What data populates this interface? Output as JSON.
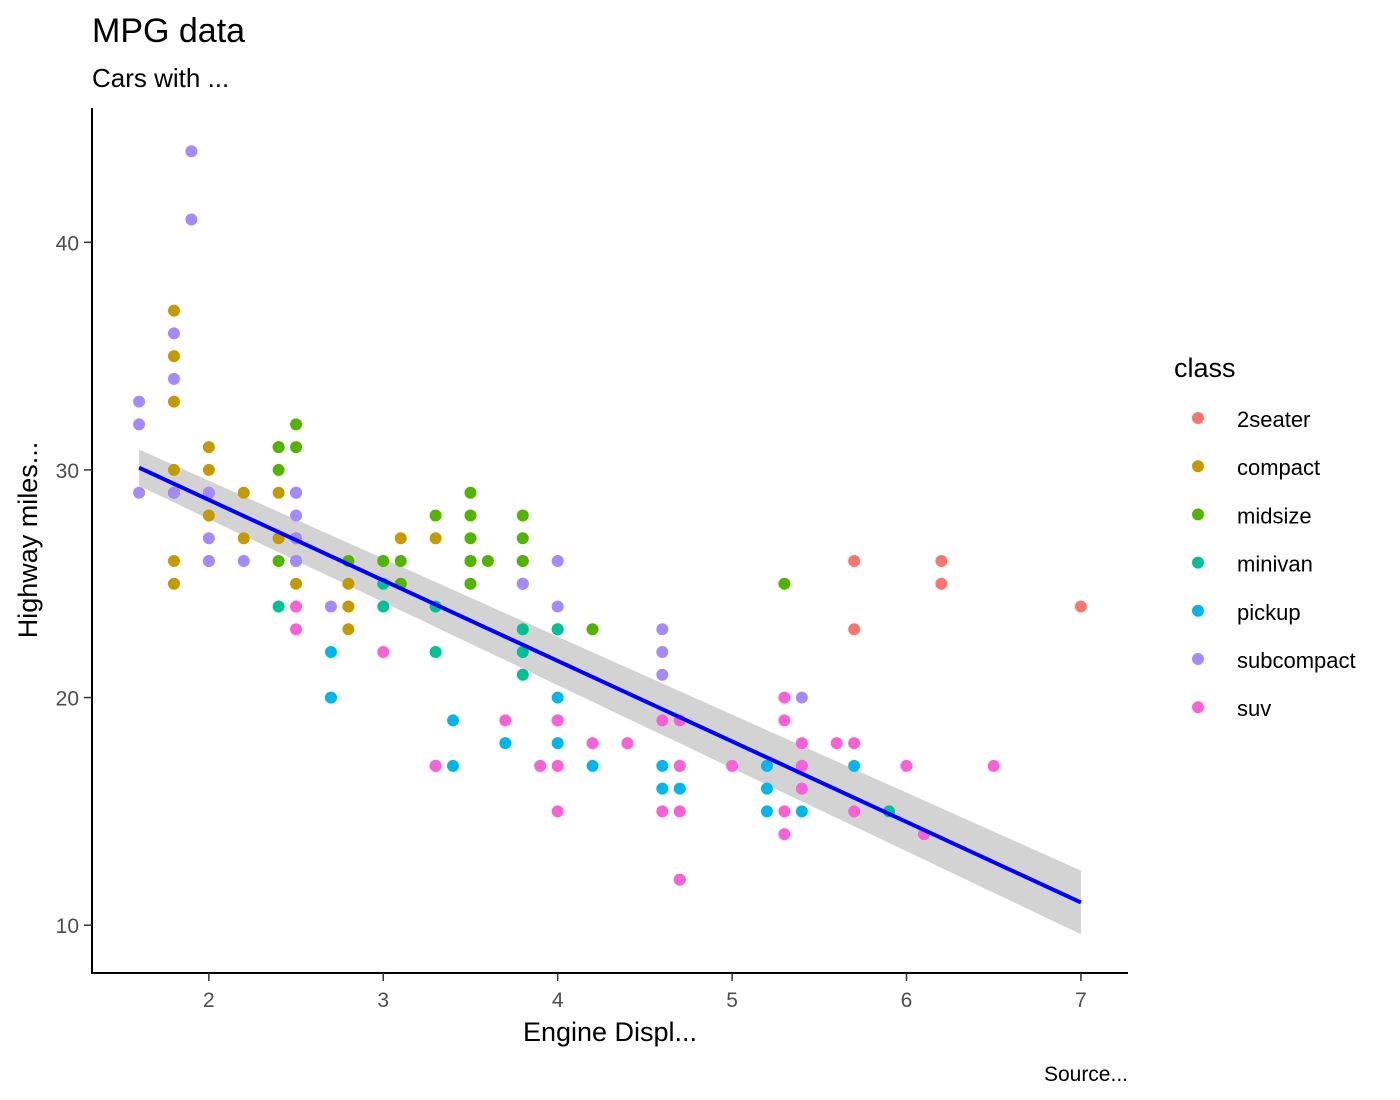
{
  "chart_data": {
    "type": "scatter",
    "title": "MPG data",
    "subtitle": "Cars with ...",
    "xlabel": "Engine Displ...",
    "ylabel": "Highway miles...",
    "caption": "Source...",
    "xlim": [
      1.33,
      7.27
    ],
    "ylim": [
      7.9,
      45.9
    ],
    "xticks": [
      2,
      3,
      4,
      5,
      6,
      7
    ],
    "yticks": [
      10,
      20,
      30,
      40
    ],
    "grid": false,
    "legend": {
      "title": "class",
      "position": "right",
      "entries": [
        {
          "name": "2seater",
          "color": "#F8766D"
        },
        {
          "name": "compact",
          "color": "#C49A00"
        },
        {
          "name": "midsize",
          "color": "#53B400"
        },
        {
          "name": "minivan",
          "color": "#00C094"
        },
        {
          "name": "pickup",
          "color": "#00B6EB"
        },
        {
          "name": "subcompact",
          "color": "#A58AFF"
        },
        {
          "name": "suv",
          "color": "#FB61D7"
        }
      ]
    },
    "trend_line": {
      "method": "linear",
      "color": "#0000FF",
      "band_color": "#D3D3D3",
      "x": [
        1.6,
        7.0
      ],
      "y": [
        30.1,
        11.0
      ],
      "ci_upper": [
        30.9,
        12.4
      ],
      "ci_lower": [
        29.3,
        9.6
      ]
    },
    "series": [
      {
        "name": "2seater",
        "color": "#F8766D",
        "x": [
          5.7,
          5.7,
          6.2,
          6.2,
          7.0
        ],
        "y": [
          26,
          23,
          26,
          25,
          24
        ]
      },
      {
        "name": "compact",
        "color": "#C49A00",
        "x": [
          1.8,
          1.8,
          1.8,
          1.8,
          1.8,
          1.8,
          2.0,
          2.0,
          2.0,
          2.2,
          2.2,
          2.4,
          2.4,
          2.4,
          2.5,
          2.5,
          2.8,
          2.8,
          2.8,
          3.0,
          3.1,
          3.3,
          1.8,
          2.0
        ],
        "y": [
          37,
          35,
          33,
          30,
          26,
          25,
          31,
          30,
          28,
          29,
          27,
          31,
          29,
          27,
          27,
          25,
          25,
          24,
          23,
          26,
          27,
          27,
          29,
          26
        ]
      },
      {
        "name": "midsize",
        "color": "#53B400",
        "x": [
          1.8,
          2.0,
          2.4,
          2.4,
          2.4,
          2.5,
          2.5,
          2.5,
          2.8,
          3.0,
          3.1,
          3.1,
          3.3,
          3.5,
          3.5,
          3.5,
          3.5,
          3.5,
          3.5,
          3.6,
          3.8,
          3.8,
          3.8,
          3.8,
          3.8,
          4.0,
          4.2,
          5.3,
          2.5
        ],
        "y": [
          29,
          29,
          31,
          30,
          26,
          32,
          31,
          26,
          26,
          26,
          26,
          25,
          28,
          29,
          28,
          27,
          26,
          25,
          26,
          26,
          28,
          27,
          26,
          26,
          25,
          23,
          23,
          25,
          29
        ]
      },
      {
        "name": "minivan",
        "color": "#00C094",
        "x": [
          2.4,
          3.0,
          3.0,
          3.3,
          3.3,
          3.3,
          3.8,
          3.8,
          3.8,
          4.0,
          5.9
        ],
        "y": [
          24,
          25,
          24,
          24,
          22,
          17,
          23,
          22,
          21,
          23,
          15
        ]
      },
      {
        "name": "pickup",
        "color": "#00B6EB",
        "x": [
          2.7,
          2.7,
          3.4,
          3.4,
          3.7,
          4.0,
          4.0,
          4.2,
          4.6,
          4.6,
          4.7,
          4.7,
          4.7,
          5.2,
          5.2,
          5.4,
          5.4,
          5.7,
          2.7,
          5.2,
          4.0
        ],
        "y": [
          22,
          20,
          19,
          17,
          18,
          20,
          18,
          17,
          17,
          16,
          17,
          16,
          12,
          17,
          15,
          17,
          15,
          17,
          20,
          16,
          19
        ]
      },
      {
        "name": "subcompact",
        "color": "#A58AFF",
        "x": [
          1.6,
          1.6,
          1.6,
          1.8,
          1.8,
          1.8,
          1.9,
          1.9,
          2.0,
          2.0,
          2.2,
          2.5,
          2.5,
          2.5,
          2.5,
          2.5,
          2.7,
          3.8,
          4.0,
          4.0,
          4.6,
          4.6,
          4.6,
          5.4,
          2.0
        ],
        "y": [
          33,
          32,
          29,
          36,
          34,
          29,
          44,
          41,
          27,
          26,
          26,
          29,
          28,
          27,
          26,
          24,
          24,
          25,
          26,
          24,
          23,
          22,
          21,
          20,
          29
        ]
      },
      {
        "name": "suv",
        "color": "#FB61D7",
        "x": [
          2.5,
          2.5,
          3.0,
          3.3,
          3.7,
          3.9,
          4.0,
          4.0,
          4.0,
          4.2,
          4.4,
          4.6,
          4.6,
          4.7,
          4.7,
          4.7,
          4.7,
          5.0,
          5.3,
          5.3,
          5.3,
          5.3,
          5.4,
          5.4,
          5.4,
          5.6,
          5.7,
          5.7,
          6.0,
          6.1,
          6.5
        ],
        "y": [
          24,
          23,
          22,
          17,
          19,
          17,
          19,
          17,
          15,
          18,
          18,
          19,
          15,
          19,
          17,
          15,
          12,
          17,
          20,
          19,
          15,
          14,
          18,
          17,
          16,
          18,
          18,
          15,
          17,
          14,
          17
        ]
      }
    ]
  }
}
